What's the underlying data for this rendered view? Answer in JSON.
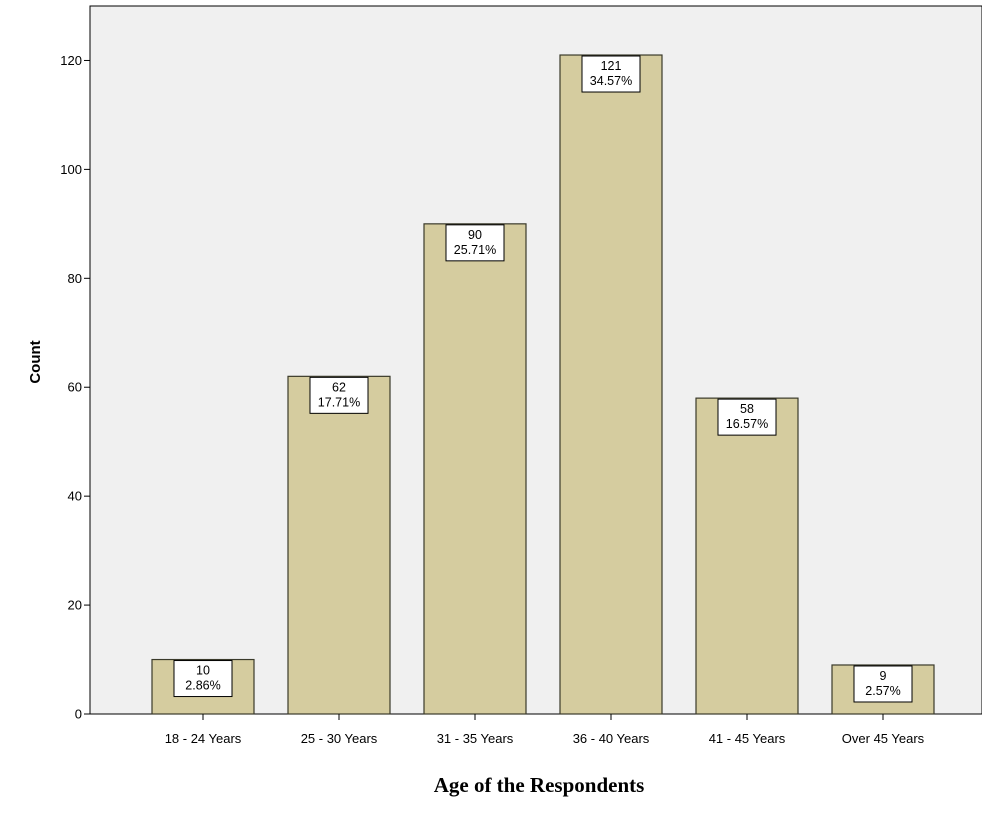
{
  "chart_data": {
    "type": "bar",
    "title": "",
    "xlabel": "Age of the Respondents",
    "ylabel": "Count",
    "ylim": [
      0,
      130
    ],
    "yticks": [
      0,
      20,
      40,
      60,
      80,
      100,
      120
    ],
    "grid": false,
    "legend": "none",
    "colors": {
      "bar_fill": "#d5cc9f",
      "bar_stroke": "#3a3a2a",
      "plot_bg": "#f0f0f0",
      "label_bg": "#ffffff"
    },
    "categories": [
      "18 - 24 Years",
      "25 - 30 Years",
      "31 - 35 Years",
      "36 - 40 Years",
      "41 - 45 Years",
      "Over 45 Years"
    ],
    "values": [
      10,
      62,
      90,
      121,
      58,
      9
    ],
    "percent_labels": [
      "2.86%",
      "17.71%",
      "25.71%",
      "34.57%",
      "16.57%",
      "2.57%"
    ]
  }
}
